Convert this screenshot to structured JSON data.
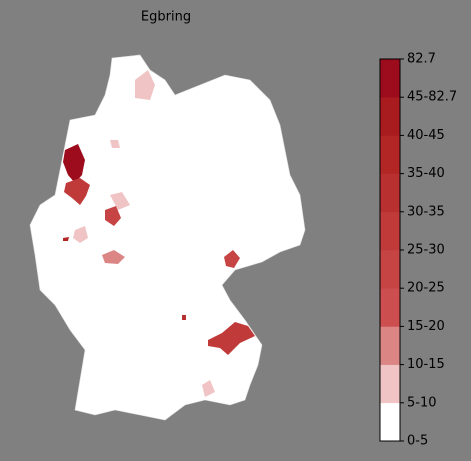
{
  "title": "Egbring",
  "colorbar": {
    "labels": [
      "0-5",
      "5-10",
      "10-15",
      "15-20",
      "20-25",
      "25-30",
      "30-35",
      "35-40",
      "40-45",
      "45-82.7",
      "82.7"
    ],
    "colors": [
      "#ffffff",
      "#f0c4c4",
      "#db8585",
      "#cc4e4e",
      "#c64444",
      "#c03a3a",
      "#b93030",
      "#b22626",
      "#a81b1f",
      "#9c0c1c"
    ]
  }
}
